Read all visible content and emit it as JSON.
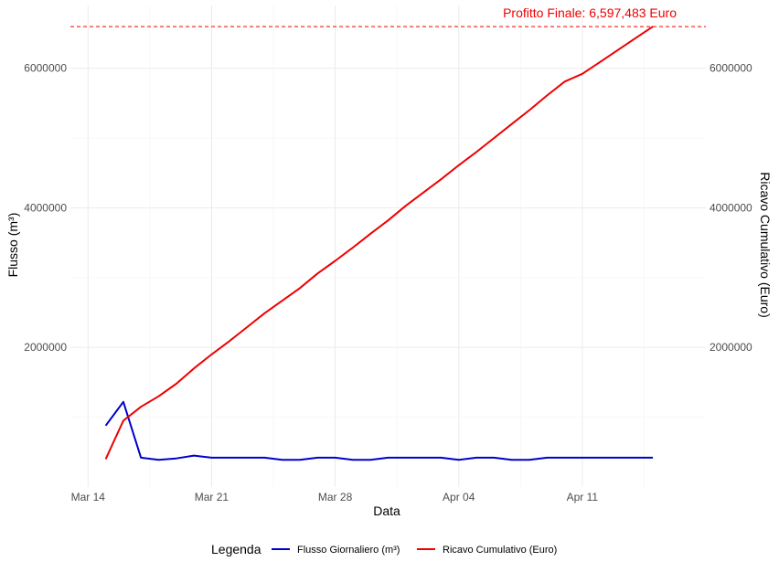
{
  "chart_data": {
    "type": "line",
    "xlabel": "Data",
    "ylabel_left": "Flusso (m³)",
    "ylabel_right": "Ricavo Cumulativo (Euro)",
    "x_ticks": [
      {
        "date": "2025-03-14",
        "label": "Mar 14"
      },
      {
        "date": "2025-03-21",
        "label": "Mar 21"
      },
      {
        "date": "2025-03-28",
        "label": "Mar 28"
      },
      {
        "date": "2025-04-04",
        "label": "Apr 04"
      },
      {
        "date": "2025-04-11",
        "label": "Apr 11"
      }
    ],
    "xlim": [
      "2025-03-13",
      "2025-04-18"
    ],
    "y_ticks": [
      {
        "value": 2000000,
        "label": "2000000"
      },
      {
        "value": 4000000,
        "label": "4000000"
      },
      {
        "value": 6000000,
        "label": "6000000"
      }
    ],
    "ylim": [
      0,
      6900000
    ],
    "grid": true,
    "legend": {
      "title": "Legenda",
      "position": "bottom"
    },
    "series": [
      {
        "name": "Flusso Giornaliero (m³)",
        "color": "#0000CD",
        "x": [
          "2025-03-15",
          "2025-03-16",
          "2025-03-17",
          "2025-03-18",
          "2025-03-19",
          "2025-03-20",
          "2025-03-21",
          "2025-03-22",
          "2025-03-23",
          "2025-03-24",
          "2025-03-25",
          "2025-03-26",
          "2025-03-27",
          "2025-03-28",
          "2025-03-29",
          "2025-03-30",
          "2025-03-31",
          "2025-04-01",
          "2025-04-02",
          "2025-04-03",
          "2025-04-04",
          "2025-04-05",
          "2025-04-06",
          "2025-04-07",
          "2025-04-08",
          "2025-04-09",
          "2025-04-10",
          "2025-04-11",
          "2025-04-12",
          "2025-04-13",
          "2025-04-14",
          "2025-04-15"
        ],
        "values": [
          880000,
          1220000,
          420000,
          390000,
          410000,
          450000,
          420000,
          420000,
          420000,
          420000,
          390000,
          390000,
          420000,
          420000,
          390000,
          390000,
          420000,
          420000,
          420000,
          420000,
          390000,
          420000,
          420000,
          390000,
          390000,
          420000,
          420000,
          420000,
          420000,
          420000,
          420000,
          420000
        ]
      },
      {
        "name": "Ricavo Cumulativo (Euro)",
        "color": "#EE0000",
        "x": [
          "2025-03-15",
          "2025-03-16",
          "2025-03-17",
          "2025-03-18",
          "2025-03-19",
          "2025-03-20",
          "2025-03-21",
          "2025-03-22",
          "2025-03-23",
          "2025-03-24",
          "2025-03-25",
          "2025-03-26",
          "2025-03-27",
          "2025-03-28",
          "2025-03-29",
          "2025-03-30",
          "2025-03-31",
          "2025-04-01",
          "2025-04-02",
          "2025-04-03",
          "2025-04-04",
          "2025-04-05",
          "2025-04-06",
          "2025-04-07",
          "2025-04-08",
          "2025-04-09",
          "2025-04-10",
          "2025-04-11",
          "2025-04-12",
          "2025-04-13",
          "2025-04-14",
          "2025-04-15"
        ],
        "values": [
          400000,
          950000,
          1150000,
          1300000,
          1480000,
          1700000,
          1900000,
          2090000,
          2290000,
          2490000,
          2670000,
          2850000,
          3060000,
          3240000,
          3430000,
          3630000,
          3820000,
          4030000,
          4220000,
          4410000,
          4610000,
          4800000,
          5000000,
          5200000,
          5400000,
          5610000,
          5810000,
          5920000,
          6090000,
          6260000,
          6430000,
          6597483
        ]
      }
    ],
    "reference_line": {
      "value": 6597483,
      "color": "#EE0000",
      "style": "dashed",
      "label": "Profitto Finale: 6,597,483 Euro"
    }
  }
}
